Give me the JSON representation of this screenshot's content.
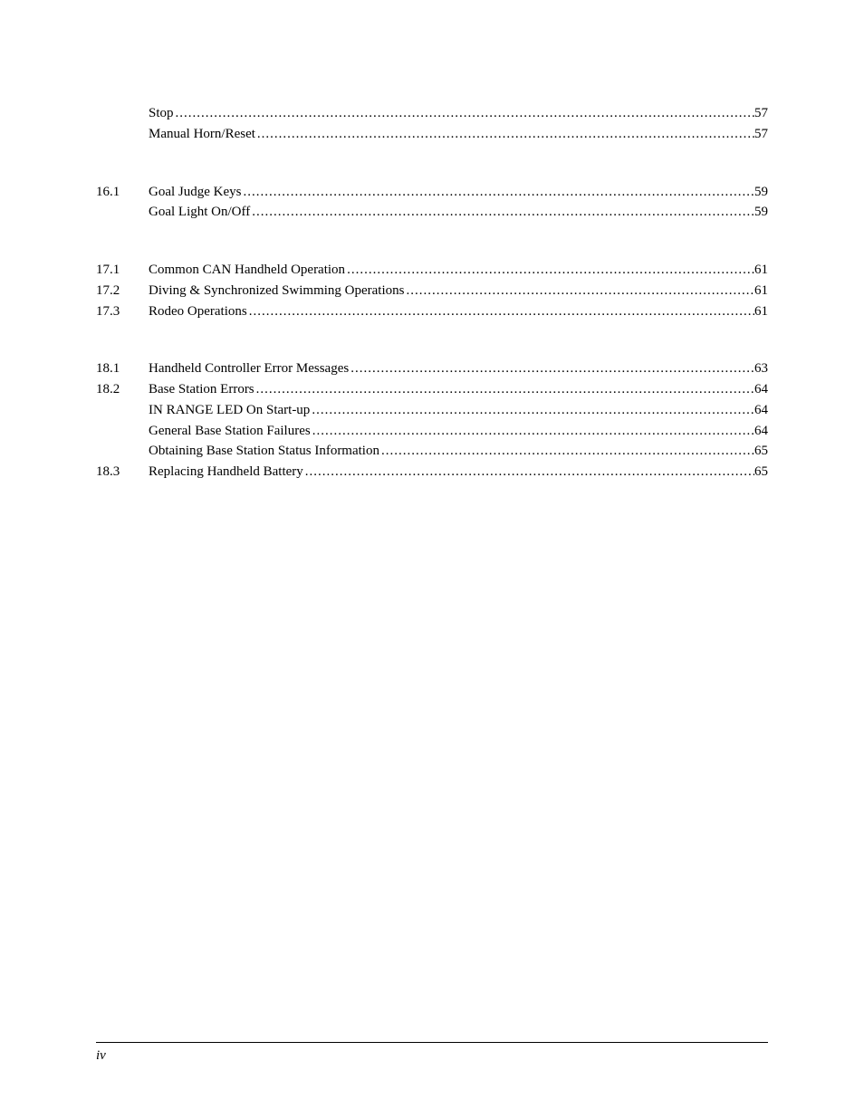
{
  "toc": {
    "groups": [
      {
        "rows": [
          {
            "num": "",
            "label": "Stop",
            "page": "57",
            "indent": 1
          },
          {
            "num": "",
            "label": "Manual Horn/Reset",
            "page": "57",
            "indent": 1
          }
        ]
      },
      {
        "rows": [
          {
            "num": "16.1",
            "label": "Goal Judge Keys",
            "page": "59",
            "indent": 0
          },
          {
            "num": "",
            "label": "Goal Light On/Off",
            "page": "59",
            "indent": 1
          }
        ]
      },
      {
        "rows": [
          {
            "num": "17.1",
            "label": "Common CAN Handheld Operation",
            "page": "61",
            "indent": 0
          },
          {
            "num": "17.2",
            "label": "Diving & Synchronized Swimming Operations",
            "page": "61",
            "indent": 0
          },
          {
            "num": "17.3",
            "label": "Rodeo Operations",
            "page": "61",
            "indent": 0
          }
        ]
      },
      {
        "rows": [
          {
            "num": "18.1",
            "label": "Handheld Controller Error Messages",
            "page": "63",
            "indent": 0
          },
          {
            "num": "18.2",
            "label": "Base Station Errors",
            "page": "64",
            "indent": 0
          },
          {
            "num": "",
            "label": "IN RANGE LED On Start-up",
            "page": "64",
            "indent": 1
          },
          {
            "num": "",
            "label": "General Base Station Failures",
            "page": "64",
            "indent": 1
          },
          {
            "num": "",
            "label": "Obtaining Base Station Status Information",
            "page": "65",
            "indent": 1
          },
          {
            "num": "18.3",
            "label": "Replacing Handheld Battery",
            "page": "65",
            "indent": 0
          }
        ]
      }
    ]
  },
  "footer": {
    "page_number": "iv"
  },
  "style": {
    "text_color": "#000000",
    "background_color": "#ffffff",
    "font_size_pt": 11,
    "line_color": "#000000"
  }
}
